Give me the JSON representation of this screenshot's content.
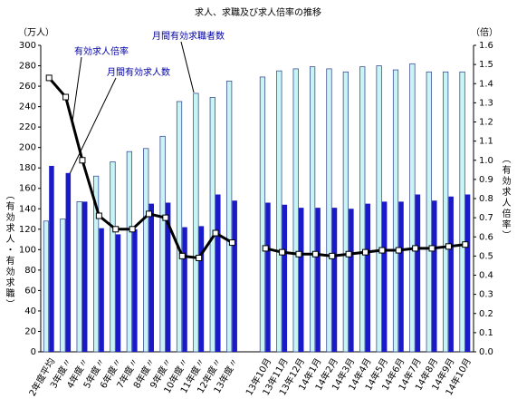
{
  "chart_data": {
    "type": "bar-line",
    "title": "求人、求職及び求人倍率の推移",
    "y_unit": "（万人）",
    "y2_unit": "（倍）",
    "y_label": "（有効求人・有効求職）",
    "y2_label": "（有効求人倍率）",
    "annotations": [
      "有効求人倍率",
      "月間有効求人数",
      "月間有効求職者数"
    ],
    "categories": [
      "2年度平均",
      "3年度〃",
      "4年度〃",
      "5年度〃",
      "6年度〃",
      "7年度〃",
      "8年度〃",
      "9年度〃",
      "10年度〃",
      "11年度〃",
      "12年度〃",
      "13年度〃",
      null,
      "13年10月",
      "13年11月",
      "13年12月",
      "14年1月",
      "14年2月",
      "14年3月",
      "14年4月",
      "14年5月",
      "14年6月",
      "14年7月",
      "14年8月",
      "14年9月",
      "14年10月"
    ],
    "series": [
      {
        "name": "月間有効求職者数",
        "color": "#c8f4f4",
        "values": [
          128,
          130,
          147,
          172,
          186,
          196,
          199,
          211,
          245,
          253,
          249,
          265,
          null,
          269,
          275,
          277,
          279,
          277,
          274,
          279,
          280,
          276,
          282,
          274,
          274,
          274
        ]
      },
      {
        "name": "月間有効求人数",
        "color": "#1a1ac8",
        "values": [
          182,
          175,
          147,
          121,
          115,
          120,
          145,
          146,
          122,
          123,
          154,
          148,
          null,
          146,
          144,
          141,
          141,
          141,
          140,
          145,
          147,
          147,
          154,
          148,
          152,
          154
        ]
      },
      {
        "name": "有効求人倍率",
        "color": "#000000",
        "axis": "y2",
        "values": [
          1.43,
          1.33,
          1.0,
          0.71,
          0.64,
          0.64,
          0.72,
          0.7,
          0.5,
          0.49,
          0.62,
          0.57,
          null,
          0.54,
          0.52,
          0.51,
          0.51,
          0.5,
          0.51,
          0.52,
          0.53,
          0.53,
          0.54,
          0.54,
          0.55,
          0.56
        ]
      }
    ],
    "ylim": [
      0,
      300
    ],
    "yticks": [
      0,
      20,
      40,
      60,
      80,
      100,
      120,
      140,
      160,
      180,
      200,
      220,
      240,
      260,
      280,
      300
    ],
    "y2lim": [
      0,
      1.6
    ],
    "y2ticks": [
      {
        "value": 0,
        "label": "0.0"
      },
      0.1,
      0.2,
      0.3,
      0.4,
      0.5,
      0.6,
      0.7,
      0.8,
      0.9,
      {
        "value": 1,
        "label": "1.0"
      },
      1.1,
      1.2,
      1.3,
      1.4,
      1.5,
      1.6
    ]
  }
}
